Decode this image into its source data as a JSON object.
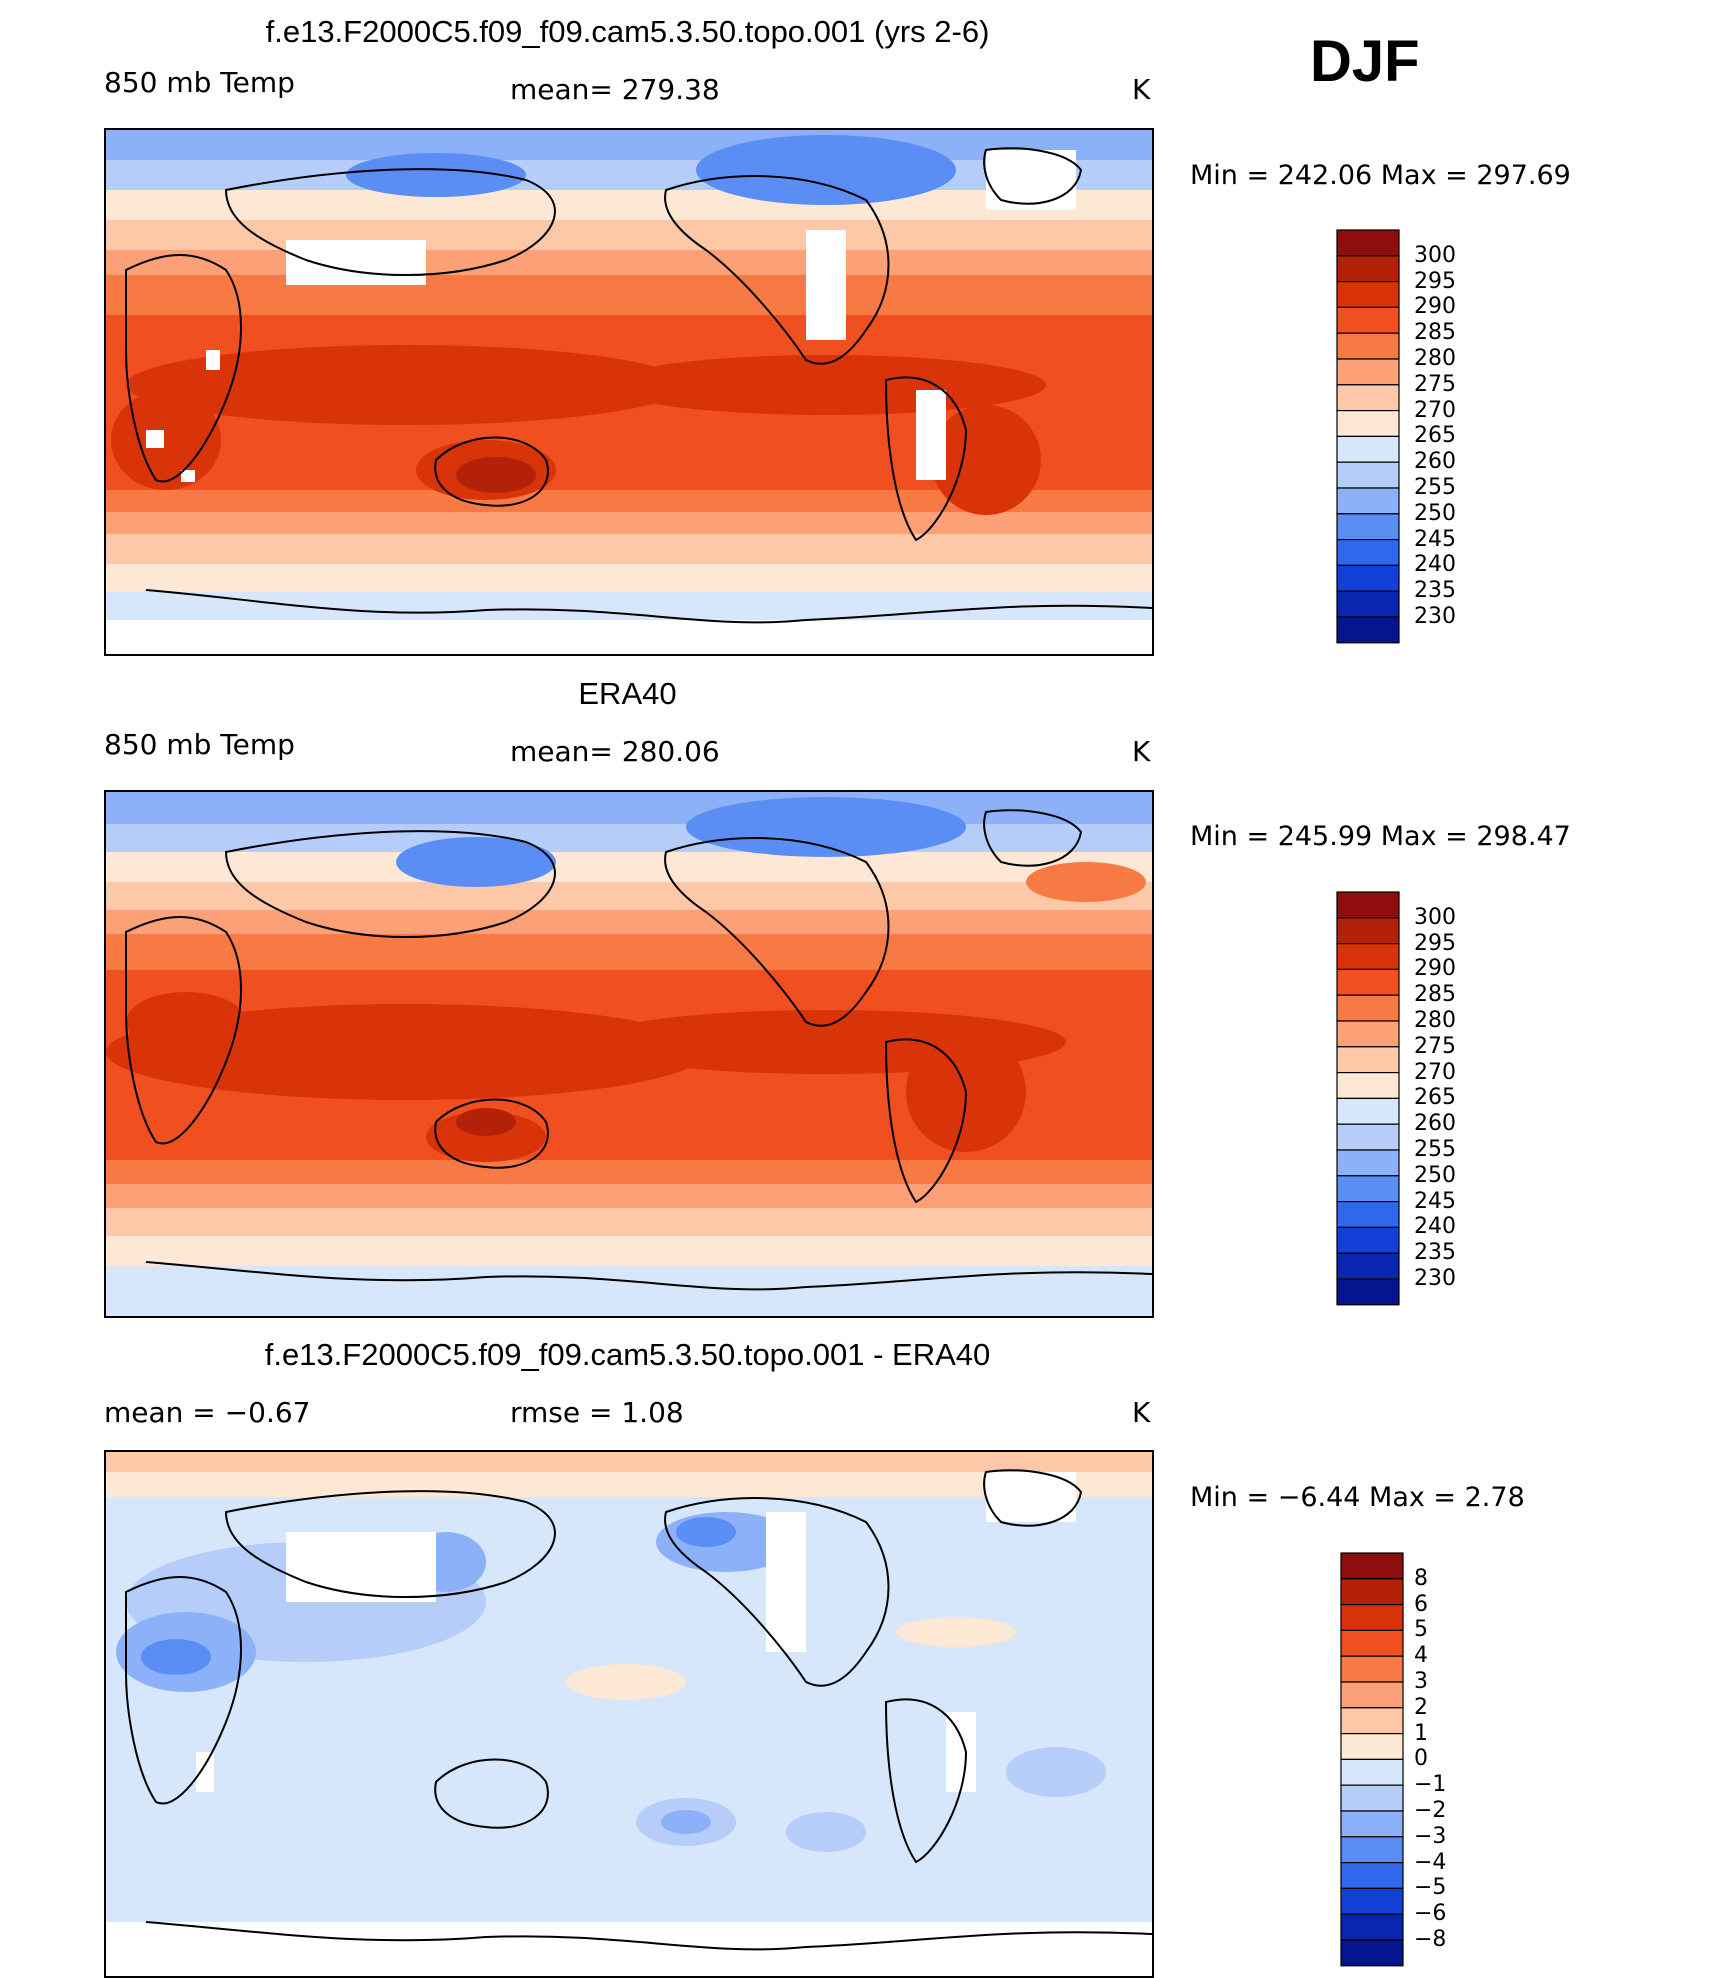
{
  "season": "DJF",
  "panels": [
    {
      "title": "f.e13.F2000C5.f09_f09.cam5.3.50.topo.001 (yrs 2-6)",
      "left_label": "850 mb Temp",
      "center_label": "mean=  279.38",
      "units": "K",
      "range_text": "Min  =  242.06  Max  =  297.69",
      "colorbar": {
        "labels": [
          "300",
          "295",
          "290",
          "285",
          "280",
          "275",
          "270",
          "265",
          "260",
          "255",
          "250",
          "245",
          "240",
          "235",
          "230"
        ],
        "colors": [
          "#8f0d0d",
          "#b32208",
          "#d9330a",
          "#f04f1f",
          "#f77a45",
          "#fba077",
          "#fcc8a8",
          "#fde8d6",
          "#d6e6fb",
          "#b6cdfa",
          "#8db1f8",
          "#5b8ef4",
          "#2f68ec",
          "#1240d6",
          "#0826b0",
          "#051590"
        ]
      }
    },
    {
      "title": "ERA40",
      "left_label": "850 mb Temp",
      "center_label": "mean=  280.06",
      "units": "K",
      "range_text": "Min  =  245.99  Max  =  298.47",
      "colorbar": {
        "labels": [
          "300",
          "295",
          "290",
          "285",
          "280",
          "275",
          "270",
          "265",
          "260",
          "255",
          "250",
          "245",
          "240",
          "235",
          "230"
        ],
        "colors": [
          "#8f0d0d",
          "#b32208",
          "#d9330a",
          "#f04f1f",
          "#f77a45",
          "#fba077",
          "#fcc8a8",
          "#fde8d6",
          "#d6e6fb",
          "#b6cdfa",
          "#8db1f8",
          "#5b8ef4",
          "#2f68ec",
          "#1240d6",
          "#0826b0",
          "#051590"
        ]
      }
    },
    {
      "title": "f.e13.F2000C5.f09_f09.cam5.3.50.topo.001 - ERA40",
      "left_label": "mean  =    −0.67",
      "center_label": "rmse  =     1.08",
      "units": "K",
      "range_text": "Min  =    −6.44  Max  =      2.78",
      "colorbar": {
        "labels": [
          "8",
          "6",
          "5",
          "4",
          "3",
          "2",
          "1",
          "0",
          "−1",
          "−2",
          "−3",
          "−4",
          "−5",
          "−6",
          "−8"
        ],
        "colors": [
          "#8f0d0d",
          "#b32208",
          "#d9330a",
          "#f04f1f",
          "#f77a45",
          "#fba077",
          "#fcc8a8",
          "#fde8d6",
          "#d6e6fb",
          "#b6cdfa",
          "#8db1f8",
          "#5b8ef4",
          "#2f68ec",
          "#1240d6",
          "#0826b0",
          "#051590"
        ]
      }
    }
  ]
}
